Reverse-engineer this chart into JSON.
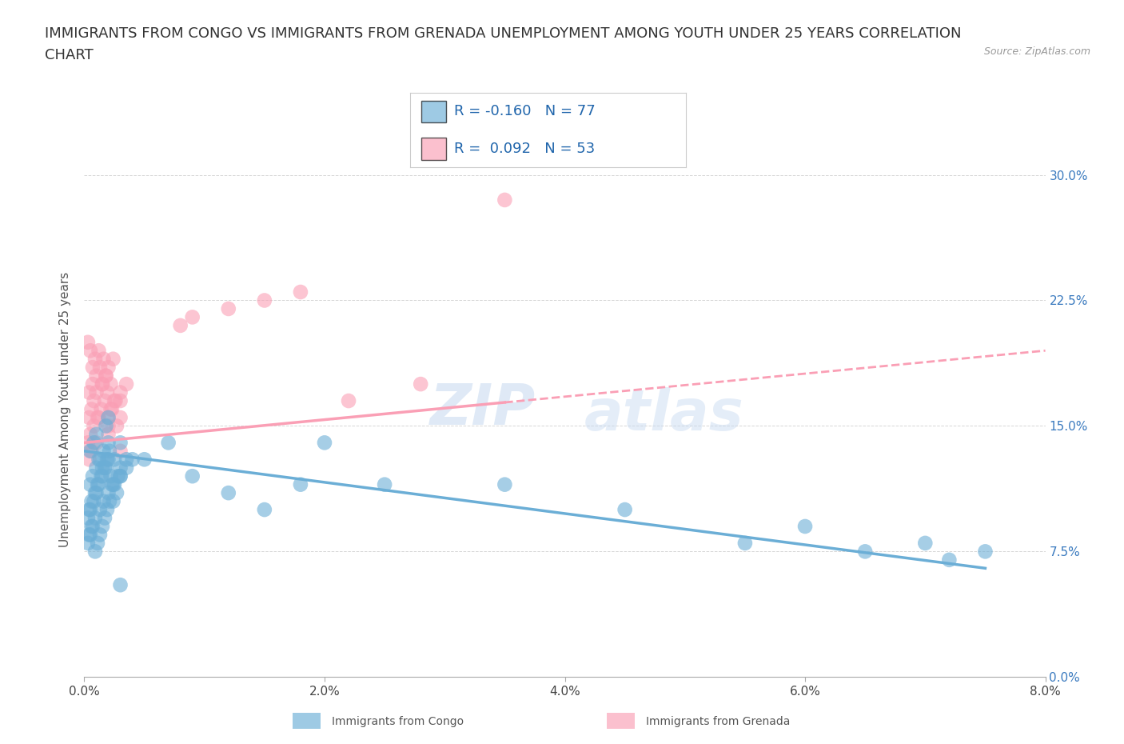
{
  "title_line1": "IMMIGRANTS FROM CONGO VS IMMIGRANTS FROM GRENADA UNEMPLOYMENT AMONG YOUTH UNDER 25 YEARS CORRELATION",
  "title_line2": "CHART",
  "source_text": "Source: ZipAtlas.com",
  "ylabel": "Unemployment Among Youth under 25 years",
  "xlim": [
    0.0,
    0.08
  ],
  "ylim": [
    0.0,
    0.32
  ],
  "xtick_labels": [
    "0.0%",
    "2.0%",
    "4.0%",
    "6.0%",
    "8.0%"
  ],
  "xtick_values": [
    0.0,
    0.02,
    0.04,
    0.06,
    0.08
  ],
  "ytick_labels": [
    "0.0%",
    "7.5%",
    "15.0%",
    "22.5%",
    "30.0%"
  ],
  "ytick_values": [
    0.0,
    0.075,
    0.15,
    0.225,
    0.3
  ],
  "congo_color": "#6baed6",
  "grenada_color": "#fa9fb5",
  "congo_R": -0.16,
  "congo_N": 77,
  "grenada_R": 0.092,
  "grenada_N": 53,
  "legend_label_congo": "Immigrants from Congo",
  "legend_label_grenada": "Immigrants from Grenada",
  "watermark_zip": "ZIP",
  "watermark_atlas": "atlas",
  "background_color": "#ffffff",
  "grid_color": "#cccccc",
  "title_fontsize": 13,
  "axis_label_fontsize": 11,
  "tick_fontsize": 11,
  "congo_scatter_x": [
    0.0005,
    0.0008,
    0.001,
    0.0012,
    0.0015,
    0.0018,
    0.002,
    0.0022,
    0.0025,
    0.003,
    0.0005,
    0.0007,
    0.001,
    0.0013,
    0.0016,
    0.002,
    0.0023,
    0.0028,
    0.003,
    0.0035,
    0.0004,
    0.0006,
    0.0009,
    0.0011,
    0.0014,
    0.0017,
    0.0019,
    0.0021,
    0.0024,
    0.0027,
    0.0003,
    0.0005,
    0.0008,
    0.001,
    0.0012,
    0.0015,
    0.0018,
    0.002,
    0.0025,
    0.003,
    0.0004,
    0.0006,
    0.0009,
    0.0013,
    0.0016,
    0.002,
    0.0024,
    0.003,
    0.0035,
    0.004,
    0.0003,
    0.0005,
    0.0007,
    0.0009,
    0.0011,
    0.0013,
    0.0015,
    0.0017,
    0.0019,
    0.0021,
    0.005,
    0.007,
    0.009,
    0.012,
    0.015,
    0.018,
    0.02,
    0.025,
    0.035,
    0.045,
    0.055,
    0.06,
    0.065,
    0.07,
    0.072,
    0.075,
    0.003
  ],
  "congo_scatter_y": [
    0.135,
    0.14,
    0.145,
    0.13,
    0.125,
    0.15,
    0.155,
    0.12,
    0.13,
    0.14,
    0.115,
    0.12,
    0.125,
    0.13,
    0.135,
    0.14,
    0.115,
    0.12,
    0.125,
    0.13,
    0.1,
    0.105,
    0.11,
    0.115,
    0.12,
    0.125,
    0.13,
    0.135,
    0.105,
    0.11,
    0.095,
    0.1,
    0.105,
    0.11,
    0.115,
    0.12,
    0.125,
    0.13,
    0.115,
    0.12,
    0.085,
    0.09,
    0.095,
    0.1,
    0.105,
    0.11,
    0.115,
    0.12,
    0.125,
    0.13,
    0.08,
    0.085,
    0.09,
    0.075,
    0.08,
    0.085,
    0.09,
    0.095,
    0.1,
    0.105,
    0.13,
    0.14,
    0.12,
    0.11,
    0.1,
    0.115,
    0.14,
    0.115,
    0.115,
    0.1,
    0.08,
    0.09,
    0.075,
    0.08,
    0.07,
    0.075,
    0.055
  ],
  "grenada_scatter_x": [
    0.0004,
    0.0006,
    0.0008,
    0.001,
    0.0012,
    0.0015,
    0.0018,
    0.002,
    0.0022,
    0.0025,
    0.0004,
    0.0007,
    0.001,
    0.0013,
    0.0016,
    0.0019,
    0.0022,
    0.0026,
    0.003,
    0.0035,
    0.0003,
    0.0005,
    0.0008,
    0.0011,
    0.0014,
    0.0017,
    0.002,
    0.0023,
    0.0027,
    0.003,
    0.0003,
    0.0005,
    0.0007,
    0.0009,
    0.0012,
    0.0015,
    0.0018,
    0.002,
    0.0024,
    0.003,
    0.0004,
    0.0006,
    0.001,
    0.002,
    0.003,
    0.008,
    0.009,
    0.012,
    0.015,
    0.018,
    0.022,
    0.028,
    0.035
  ],
  "grenada_scatter_y": [
    0.155,
    0.16,
    0.165,
    0.17,
    0.155,
    0.175,
    0.18,
    0.15,
    0.16,
    0.165,
    0.17,
    0.175,
    0.18,
    0.185,
    0.19,
    0.17,
    0.175,
    0.165,
    0.17,
    0.175,
    0.14,
    0.145,
    0.15,
    0.155,
    0.16,
    0.165,
    0.155,
    0.16,
    0.15,
    0.155,
    0.2,
    0.195,
    0.185,
    0.19,
    0.195,
    0.175,
    0.18,
    0.185,
    0.19,
    0.165,
    0.13,
    0.135,
    0.14,
    0.145,
    0.135,
    0.21,
    0.215,
    0.22,
    0.225,
    0.23,
    0.165,
    0.175,
    0.285
  ],
  "congo_line_x": [
    0.0,
    0.075
  ],
  "congo_line_y": [
    0.135,
    0.065
  ],
  "grenada_line_x": [
    0.0,
    0.08
  ],
  "grenada_line_y": [
    0.14,
    0.195
  ]
}
